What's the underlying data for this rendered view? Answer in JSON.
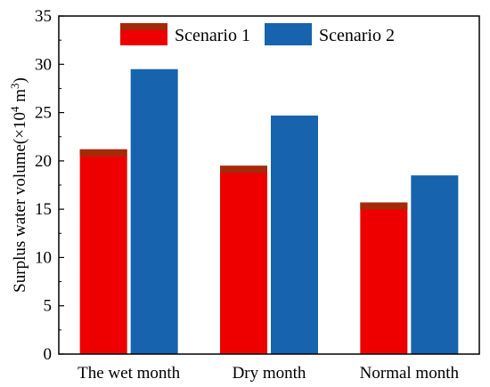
{
  "chart_data": {
    "type": "bar",
    "categories": [
      "The wet month",
      "Dry month",
      "Normal month"
    ],
    "series": [
      {
        "name": "Scenario 1",
        "values": [
          21.2,
          19.5,
          15.7
        ]
      },
      {
        "name": "Scenario 2",
        "values": [
          29.5,
          24.7,
          18.5
        ]
      }
    ],
    "ylabel_main": "Surplus water volume(×10",
    "ylabel_sup": "4",
    "ylabel_unit": " m",
    "ylabel_sup2": "3",
    "ylabel_end": ")",
    "ylim": [
      0,
      35
    ],
    "yticks": [
      "0",
      "5",
      "10",
      "15",
      "20",
      "25",
      "30",
      "35"
    ],
    "legend_position": "top-right",
    "grid": false
  },
  "colors": {
    "scenario1": "#ee0000",
    "scenario1_cap": "#a52a0a",
    "scenario2": "#1763ad"
  }
}
